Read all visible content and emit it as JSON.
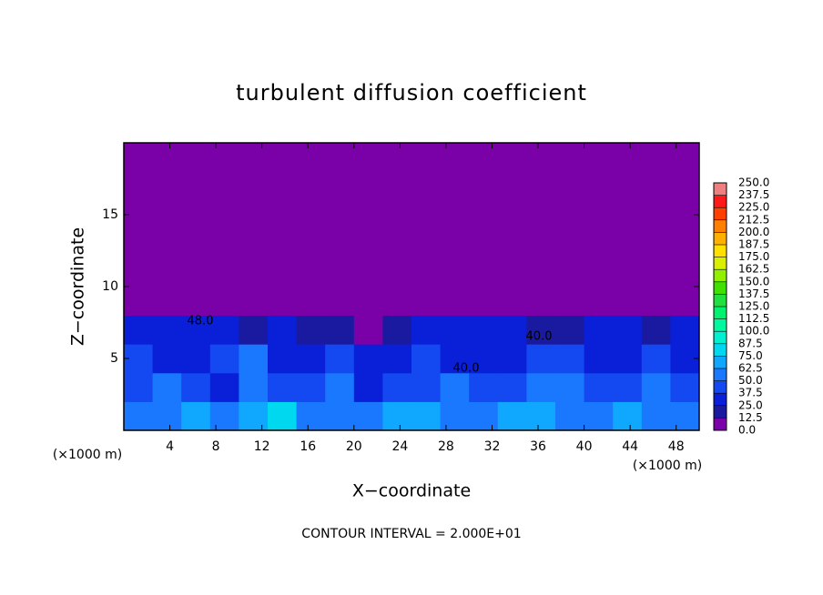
{
  "chart_data": {
    "type": "heatmap",
    "title": "turbulent diffusion coefficient",
    "x_label": "X−coordinate",
    "y_label": "Z−coordinate",
    "x_unit": "(×1000 m)",
    "footnote": "CONTOUR INTERVAL = 2.000E+01",
    "annotations": [
      "48.0",
      "40.0",
      "40.0"
    ],
    "xlim": [
      0,
      50
    ],
    "ylim": [
      0,
      20
    ],
    "xticks": [
      4,
      8,
      12,
      16,
      20,
      24,
      28,
      32,
      36,
      40,
      44,
      48
    ],
    "yticks": [
      5,
      10,
      15
    ],
    "x": [
      1.25,
      3.75,
      6.25,
      8.75,
      11.25,
      13.75,
      16.25,
      18.75,
      21.25,
      23.75,
      26.25,
      28.75,
      31.25,
      33.75,
      36.25,
      38.75,
      41.25,
      43.75,
      46.25,
      48.75
    ],
    "y": [
      1,
      3,
      5,
      7,
      9,
      11,
      13,
      15,
      17,
      19
    ],
    "values": [
      [
        55,
        60,
        70,
        55,
        65,
        75,
        50,
        60,
        55,
        65,
        70,
        60,
        55,
        70,
        65,
        60,
        55,
        65,
        60,
        55
      ],
      [
        45,
        55,
        40,
        35,
        60,
        40,
        45,
        50,
        35,
        40,
        45,
        60,
        40,
        45,
        50,
        55,
        40,
        45,
        50,
        40
      ],
      [
        40,
        35,
        30,
        45,
        50,
        35,
        30,
        40,
        30,
        35,
        40,
        30,
        35,
        35,
        40,
        45,
        35,
        30,
        40,
        35
      ],
      [
        30,
        25,
        25,
        30,
        20,
        25,
        15,
        20,
        10,
        15,
        25,
        25,
        30,
        25,
        15,
        20,
        30,
        25,
        20,
        30
      ],
      [
        0,
        5,
        0,
        0,
        0,
        0,
        0,
        0,
        0,
        0,
        0,
        0,
        0,
        0,
        0,
        0,
        0,
        0,
        0,
        0
      ],
      [
        0,
        0,
        0,
        0,
        0,
        0,
        0,
        0,
        0,
        0,
        0,
        0,
        0,
        0,
        0,
        0,
        0,
        0,
        0,
        0
      ],
      [
        0,
        0,
        0,
        0,
        0,
        0,
        0,
        0,
        0,
        0,
        0,
        0,
        0,
        0,
        0,
        0,
        0,
        0,
        0,
        0
      ],
      [
        0,
        0,
        0,
        0,
        0,
        0,
        0,
        0,
        0,
        0,
        0,
        0,
        0,
        0,
        0,
        0,
        0,
        0,
        0,
        0
      ],
      [
        0,
        0,
        0,
        0,
        0,
        0,
        0,
        0,
        0,
        0,
        0,
        0,
        0,
        0,
        0,
        0,
        0,
        0,
        0,
        0
      ],
      [
        0,
        0,
        0,
        0,
        0,
        0,
        0,
        0,
        0,
        0,
        0,
        0,
        0,
        0,
        0,
        0,
        0,
        0,
        0,
        0
      ]
    ],
    "levels": [
      {
        "value": 0,
        "label": "0.0"
      },
      {
        "value": 12.5,
        "label": "12.5"
      },
      {
        "value": 25,
        "label": "25.0"
      },
      {
        "value": 37.5,
        "label": "37.5"
      },
      {
        "value": 50,
        "label": "50.0"
      },
      {
        "value": 62.5,
        "label": "62.5"
      },
      {
        "value": 75,
        "label": "75.0"
      },
      {
        "value": 87.5,
        "label": "87.5"
      },
      {
        "value": 100,
        "label": "100.0"
      },
      {
        "value": 112.5,
        "label": "112.5"
      },
      {
        "value": 125,
        "label": "125.0"
      },
      {
        "value": 137.5,
        "label": "137.5"
      },
      {
        "value": 150,
        "label": "150.0"
      },
      {
        "value": 162.5,
        "label": "162.5"
      },
      {
        "value": 175,
        "label": "175.0"
      },
      {
        "value": 187.5,
        "label": "187.5"
      },
      {
        "value": 200,
        "label": "200.0"
      },
      {
        "value": 212.5,
        "label": "212.5"
      },
      {
        "value": 225,
        "label": "225.0"
      },
      {
        "value": 237.5,
        "label": "237.5"
      },
      {
        "value": 250,
        "label": "250.0"
      }
    ],
    "colors": [
      "#7a00a8",
      "#1a1aa0",
      "#0a20d8",
      "#1448f0",
      "#1a78ff",
      "#10a8ff",
      "#00d8f0",
      "#00f0d0",
      "#00f8a0",
      "#00f070",
      "#20e040",
      "#40e000",
      "#90f000",
      "#d8f000",
      "#ffe000",
      "#ffb000",
      "#ff8000",
      "#ff4000",
      "#ff1a1a",
      "#f08080"
    ]
  }
}
